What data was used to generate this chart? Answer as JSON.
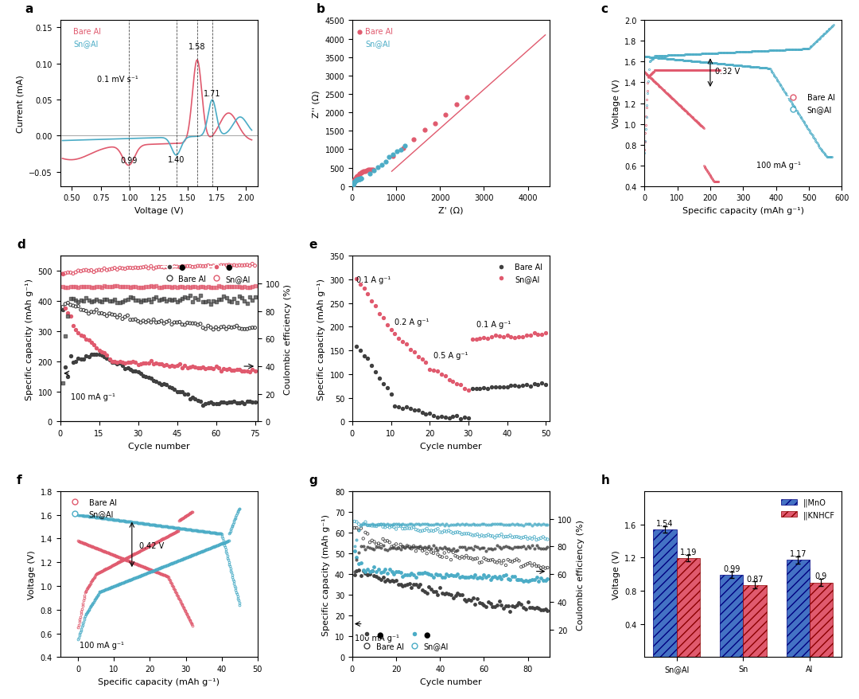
{
  "colors": {
    "bare_al_pink": "#e05a6e",
    "sn_al_blue": "#4bacc6",
    "dark_gray": "#404040",
    "bar_blue": "#4472C4",
    "bar_pink": "#e05a6e"
  },
  "panel_h": {
    "categories": [
      "Sn@Al",
      "Sn",
      "Al"
    ],
    "mnO_values": [
      1.54,
      0.99,
      1.17
    ],
    "knhcf_values": [
      1.19,
      0.87,
      0.9
    ]
  }
}
